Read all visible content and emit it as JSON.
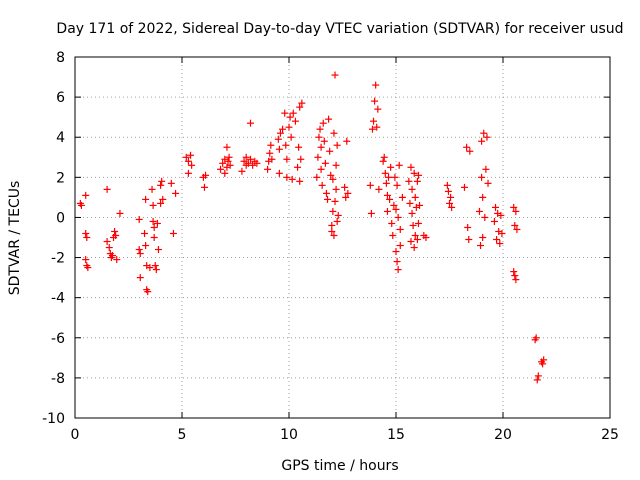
{
  "chart_data": {
    "type": "scatter",
    "title": "Day 171 of 2022, Sidereal Day-to-day VTEC variation (SDTVAR) for receiver usud",
    "xlabel": "GPS time / hours",
    "ylabel": "SDTVAR / TECUs",
    "xlim": [
      0,
      25
    ],
    "ylim": [
      -10,
      8
    ],
    "x_ticks": [
      0,
      5,
      10,
      15,
      20,
      25
    ],
    "x_tick_labels": [
      "0",
      "5",
      "10",
      "15",
      "20",
      "25"
    ],
    "y_ticks": [
      -10,
      -8,
      -6,
      -4,
      -2,
      0,
      2,
      4,
      6,
      8
    ],
    "y_tick_labels": [
      "-10",
      "-8",
      "-6",
      "-4",
      "-2",
      "0",
      "2",
      "4",
      "6",
      "8"
    ],
    "grid": true,
    "marker": "plus",
    "color": "#ff0000",
    "series": [
      {
        "name": "SDTVAR",
        "points": [
          [
            0.25,
            0.7
          ],
          [
            0.3,
            0.6
          ],
          [
            0.5,
            1.1
          ],
          [
            0.5,
            -0.8
          ],
          [
            0.55,
            -1.0
          ],
          [
            0.5,
            -2.1
          ],
          [
            0.55,
            -2.4
          ],
          [
            0.6,
            -2.5
          ],
          [
            1.5,
            1.4
          ],
          [
            1.5,
            -1.2
          ],
          [
            1.6,
            -1.5
          ],
          [
            1.65,
            -1.8
          ],
          [
            1.7,
            -2.0
          ],
          [
            1.75,
            -1.9
          ],
          [
            1.8,
            -1.0
          ],
          [
            1.85,
            -0.7
          ],
          [
            1.9,
            -0.9
          ],
          [
            1.95,
            -2.1
          ],
          [
            2.1,
            0.2
          ],
          [
            3.0,
            -0.1
          ],
          [
            3.0,
            -1.6
          ],
          [
            3.05,
            -1.8
          ],
          [
            3.05,
            -3.0
          ],
          [
            3.25,
            -0.8
          ],
          [
            3.3,
            0.9
          ],
          [
            3.3,
            -1.4
          ],
          [
            3.35,
            -2.4
          ],
          [
            3.35,
            -3.6
          ],
          [
            3.4,
            -3.7
          ],
          [
            3.5,
            -2.5
          ],
          [
            3.6,
            1.4
          ],
          [
            3.65,
            0.6
          ],
          [
            3.65,
            -0.2
          ],
          [
            3.7,
            -0.5
          ],
          [
            3.7,
            -1.0
          ],
          [
            3.75,
            -2.4
          ],
          [
            3.8,
            -2.6
          ],
          [
            3.85,
            -0.3
          ],
          [
            3.9,
            -1.6
          ],
          [
            4.0,
            1.6
          ],
          [
            4.0,
            0.7
          ],
          [
            4.05,
            1.8
          ],
          [
            4.1,
            0.9
          ],
          [
            4.5,
            1.7
          ],
          [
            4.6,
            -0.8
          ],
          [
            4.7,
            1.2
          ],
          [
            5.2,
            3.0
          ],
          [
            5.3,
            2.8
          ],
          [
            5.3,
            2.2
          ],
          [
            5.4,
            3.1
          ],
          [
            5.45,
            2.6
          ],
          [
            6.0,
            2.0
          ],
          [
            6.05,
            1.5
          ],
          [
            6.1,
            2.1
          ],
          [
            6.8,
            2.4
          ],
          [
            6.9,
            2.7
          ],
          [
            7.0,
            2.2
          ],
          [
            7.0,
            2.9
          ],
          [
            7.1,
            2.5
          ],
          [
            7.1,
            3.5
          ],
          [
            7.15,
            2.8
          ],
          [
            7.2,
            3.0
          ],
          [
            7.25,
            2.6
          ],
          [
            7.8,
            2.3
          ],
          [
            7.9,
            2.8
          ],
          [
            8.0,
            2.6
          ],
          [
            8.0,
            3.0
          ],
          [
            8.1,
            2.7
          ],
          [
            8.2,
            4.7
          ],
          [
            8.2,
            2.9
          ],
          [
            8.3,
            2.6
          ],
          [
            8.4,
            2.8
          ],
          [
            8.5,
            2.7
          ],
          [
            9.0,
            2.4
          ],
          [
            9.05,
            2.8
          ],
          [
            9.1,
            3.2
          ],
          [
            9.15,
            3.6
          ],
          [
            9.2,
            2.9
          ],
          [
            9.5,
            3.9
          ],
          [
            9.55,
            3.4
          ],
          [
            9.55,
            2.2
          ],
          [
            9.6,
            4.2
          ],
          [
            9.7,
            4.4
          ],
          [
            9.8,
            5.2
          ],
          [
            9.85,
            3.6
          ],
          [
            9.9,
            2.9
          ],
          [
            9.9,
            2.0
          ],
          [
            10.0,
            4.5
          ],
          [
            10.05,
            5.0
          ],
          [
            10.1,
            4.0
          ],
          [
            10.15,
            1.9
          ],
          [
            10.2,
            5.2
          ],
          [
            10.3,
            4.8
          ],
          [
            10.4,
            2.5
          ],
          [
            10.45,
            3.5
          ],
          [
            10.5,
            5.5
          ],
          [
            10.5,
            1.8
          ],
          [
            10.55,
            2.9
          ],
          [
            10.6,
            5.7
          ],
          [
            11.3,
            2.0
          ],
          [
            11.35,
            3.0
          ],
          [
            11.4,
            4.0
          ],
          [
            11.45,
            4.4
          ],
          [
            11.5,
            3.5
          ],
          [
            11.5,
            2.4
          ],
          [
            11.55,
            1.6
          ],
          [
            11.6,
            4.7
          ],
          [
            11.65,
            3.8
          ],
          [
            11.7,
            2.7
          ],
          [
            11.75,
            1.2
          ],
          [
            11.8,
            0.9
          ],
          [
            11.85,
            4.9
          ],
          [
            11.9,
            3.3
          ],
          [
            11.95,
            2.1
          ],
          [
            12.0,
            -0.4
          ],
          [
            12.0,
            -0.7
          ],
          [
            12.05,
            0.3
          ],
          [
            12.05,
            1.9
          ],
          [
            12.1,
            4.2
          ],
          [
            12.1,
            -0.9
          ],
          [
            12.15,
            7.1
          ],
          [
            12.15,
            0.8
          ],
          [
            12.2,
            2.6
          ],
          [
            12.2,
            1.4
          ],
          [
            12.25,
            3.6
          ],
          [
            12.25,
            -0.2
          ],
          [
            12.3,
            0.1
          ],
          [
            12.6,
            1.5
          ],
          [
            12.65,
            1.0
          ],
          [
            12.7,
            3.8
          ],
          [
            12.75,
            1.2
          ],
          [
            13.8,
            1.6
          ],
          [
            13.85,
            0.2
          ],
          [
            13.9,
            4.4
          ],
          [
            13.95,
            4.8
          ],
          [
            14.0,
            5.8
          ],
          [
            14.05,
            6.6
          ],
          [
            14.1,
            4.5
          ],
          [
            14.15,
            5.4
          ],
          [
            14.2,
            1.4
          ],
          [
            14.4,
            2.8
          ],
          [
            14.45,
            3.0
          ],
          [
            14.5,
            2.2
          ],
          [
            14.55,
            1.7
          ],
          [
            14.6,
            1.1
          ],
          [
            14.6,
            0.3
          ],
          [
            14.65,
            2.0
          ],
          [
            14.7,
            0.9
          ],
          [
            14.75,
            2.5
          ],
          [
            14.8,
            -0.3
          ],
          [
            14.85,
            -0.9
          ],
          [
            14.9,
            0.6
          ],
          [
            14.95,
            2.0
          ],
          [
            15.0,
            -1.7
          ],
          [
            15.0,
            0.4
          ],
          [
            15.05,
            1.6
          ],
          [
            15.05,
            -2.2
          ],
          [
            15.1,
            -2.6
          ],
          [
            15.1,
            0.0
          ],
          [
            15.15,
            2.6
          ],
          [
            15.2,
            -0.6
          ],
          [
            15.2,
            -1.4
          ],
          [
            15.3,
            1.0
          ],
          [
            15.6,
            1.8
          ],
          [
            15.65,
            0.7
          ],
          [
            15.7,
            2.5
          ],
          [
            15.7,
            -1.2
          ],
          [
            15.75,
            1.4
          ],
          [
            15.75,
            0.2
          ],
          [
            15.8,
            -0.4
          ],
          [
            15.85,
            2.2
          ],
          [
            15.85,
            -1.5
          ],
          [
            15.9,
            1.0
          ],
          [
            15.9,
            -0.9
          ],
          [
            15.95,
            0.5
          ],
          [
            16.0,
            1.8
          ],
          [
            16.0,
            -1.1
          ],
          [
            16.05,
            2.1
          ],
          [
            16.05,
            -0.3
          ],
          [
            16.1,
            0.6
          ],
          [
            16.3,
            -0.9
          ],
          [
            16.4,
            -1.0
          ],
          [
            17.4,
            1.6
          ],
          [
            17.45,
            1.3
          ],
          [
            17.5,
            0.7
          ],
          [
            17.55,
            1.0
          ],
          [
            17.6,
            0.5
          ],
          [
            18.2,
            1.5
          ],
          [
            18.3,
            3.5
          ],
          [
            18.35,
            -0.5
          ],
          [
            18.4,
            -1.1
          ],
          [
            18.45,
            3.3
          ],
          [
            18.9,
            0.3
          ],
          [
            18.95,
            -1.4
          ],
          [
            19.0,
            3.8
          ],
          [
            19.0,
            2.0
          ],
          [
            19.05,
            1.0
          ],
          [
            19.05,
            -1.0
          ],
          [
            19.1,
            4.2
          ],
          [
            19.15,
            0.0
          ],
          [
            19.2,
            2.4
          ],
          [
            19.25,
            4.0
          ],
          [
            19.3,
            1.7
          ],
          [
            19.6,
            -0.2
          ],
          [
            19.65,
            0.5
          ],
          [
            19.7,
            -1.1
          ],
          [
            19.75,
            0.2
          ],
          [
            19.8,
            -0.7
          ],
          [
            19.85,
            -1.3
          ],
          [
            19.9,
            0.1
          ],
          [
            19.95,
            -0.8
          ],
          [
            20.5,
            0.5
          ],
          [
            20.55,
            -0.4
          ],
          [
            20.6,
            0.3
          ],
          [
            20.65,
            -0.6
          ],
          [
            20.5,
            -2.7
          ],
          [
            20.55,
            -2.9
          ],
          [
            20.6,
            -3.1
          ],
          [
            21.5,
            -6.1
          ],
          [
            21.55,
            -6.0
          ],
          [
            21.6,
            -8.1
          ],
          [
            21.65,
            -7.9
          ],
          [
            21.8,
            -7.2
          ],
          [
            21.85,
            -7.3
          ],
          [
            21.9,
            -7.1
          ]
        ]
      }
    ]
  }
}
